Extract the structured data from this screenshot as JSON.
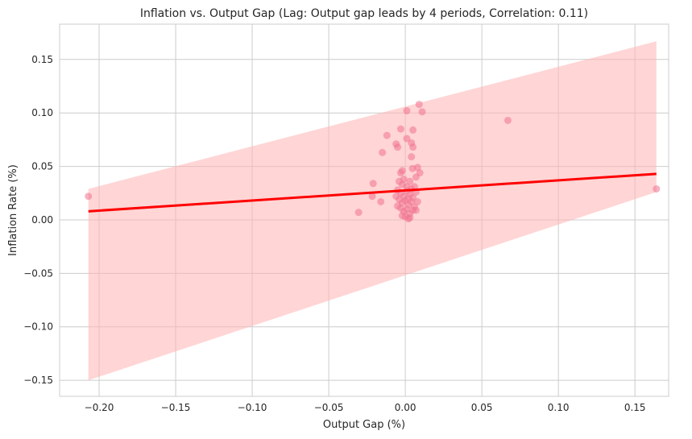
{
  "chart_data": {
    "type": "scatter",
    "title": "Inflation vs. Output Gap (Lag: Output gap leads by 4 periods, Correlation: 0.11)",
    "xlabel": "Output Gap (%)",
    "ylabel": "Inflation Rate (%)",
    "xlim": [
      -0.2258,
      0.172
    ],
    "ylim": [
      -0.165,
      0.183
    ],
    "xticks": [
      -0.2,
      -0.15,
      -0.1,
      -0.05,
      0.0,
      0.05,
      0.1,
      0.15
    ],
    "xtick_labels": [
      "−0.20",
      "−0.15",
      "−0.10",
      "−0.05",
      "0.00",
      "0.05",
      "0.10",
      "0.15"
    ],
    "yticks": [
      0.15,
      0.1,
      0.05,
      0.0,
      -0.05,
      -0.1,
      -0.15
    ],
    "ytick_labels": [
      "0.15",
      "0.10",
      "0.05",
      "0.00",
      "−0.05",
      "−0.10",
      "−0.15"
    ],
    "grid": true,
    "colors": {
      "points": "#f0728f",
      "line": "#ff0000",
      "band": "#ffb3b3",
      "grid": "#cccccc"
    },
    "regression": {
      "x": [
        -0.207,
        0.164
      ],
      "y": [
        0.008,
        0.043
      ]
    },
    "confidence_band": {
      "x": [
        -0.207,
        0.164
      ],
      "upper": [
        0.029,
        0.167
      ],
      "lower": [
        -0.15,
        0.026
      ]
    },
    "points": [
      [
        -0.207,
        0.022
      ],
      [
        -0.0305,
        0.007
      ],
      [
        -0.021,
        0.034
      ],
      [
        -0.0216,
        0.022
      ],
      [
        -0.016,
        0.017
      ],
      [
        -0.015,
        0.063
      ],
      [
        -0.012,
        0.079
      ],
      [
        -0.006,
        0.071
      ],
      [
        -0.005,
        0.068
      ],
      [
        -0.003,
        0.085
      ],
      [
        0.001,
        0.102
      ],
      [
        0.009,
        0.108
      ],
      [
        0.011,
        0.101
      ],
      [
        0.005,
        0.084
      ],
      [
        0.001,
        0.076
      ],
      [
        0.004,
        0.072
      ],
      [
        0.005,
        0.068
      ],
      [
        0.004,
        0.059
      ],
      [
        0.067,
        0.093
      ],
      [
        0.164,
        0.029
      ],
      [
        0.008,
        0.049
      ],
      [
        0.0095,
        0.044
      ],
      [
        0.0047,
        0.048
      ],
      [
        0.007,
        0.04
      ],
      [
        -0.002,
        0.046
      ],
      [
        -0.003,
        0.044
      ],
      [
        -0.004,
        0.036
      ],
      [
        -0.002,
        0.033
      ],
      [
        0.003,
        0.036
      ],
      [
        0.006,
        0.031
      ],
      [
        -0.005,
        0.028
      ],
      [
        -0.003,
        0.025
      ],
      [
        -0.001,
        0.022
      ],
      [
        0.001,
        0.027
      ],
      [
        0.003,
        0.024
      ],
      [
        0.005,
        0.021
      ],
      [
        0.007,
        0.026
      ],
      [
        -0.004,
        0.019
      ],
      [
        -0.002,
        0.016
      ],
      [
        0.0,
        0.018
      ],
      [
        0.002,
        0.014
      ],
      [
        0.004,
        0.017
      ],
      [
        0.006,
        0.012
      ],
      [
        -0.003,
        0.011
      ],
      [
        -0.001,
        0.008
      ],
      [
        0.001,
        0.01
      ],
      [
        0.003,
        0.006
      ],
      [
        0.005,
        0.009
      ],
      [
        0.007,
        0.009
      ],
      [
        -0.002,
        0.004
      ],
      [
        0.0,
        0.003
      ],
      [
        0.002,
        0.001
      ],
      [
        0.003,
        0.002
      ],
      [
        -0.005,
        0.013
      ],
      [
        0.008,
        0.017
      ],
      [
        -0.006,
        0.022
      ],
      [
        0.001,
        0.031
      ],
      [
        -0.001,
        0.038
      ],
      [
        0.002,
        0.02
      ],
      [
        0.004,
        0.029
      ]
    ]
  }
}
